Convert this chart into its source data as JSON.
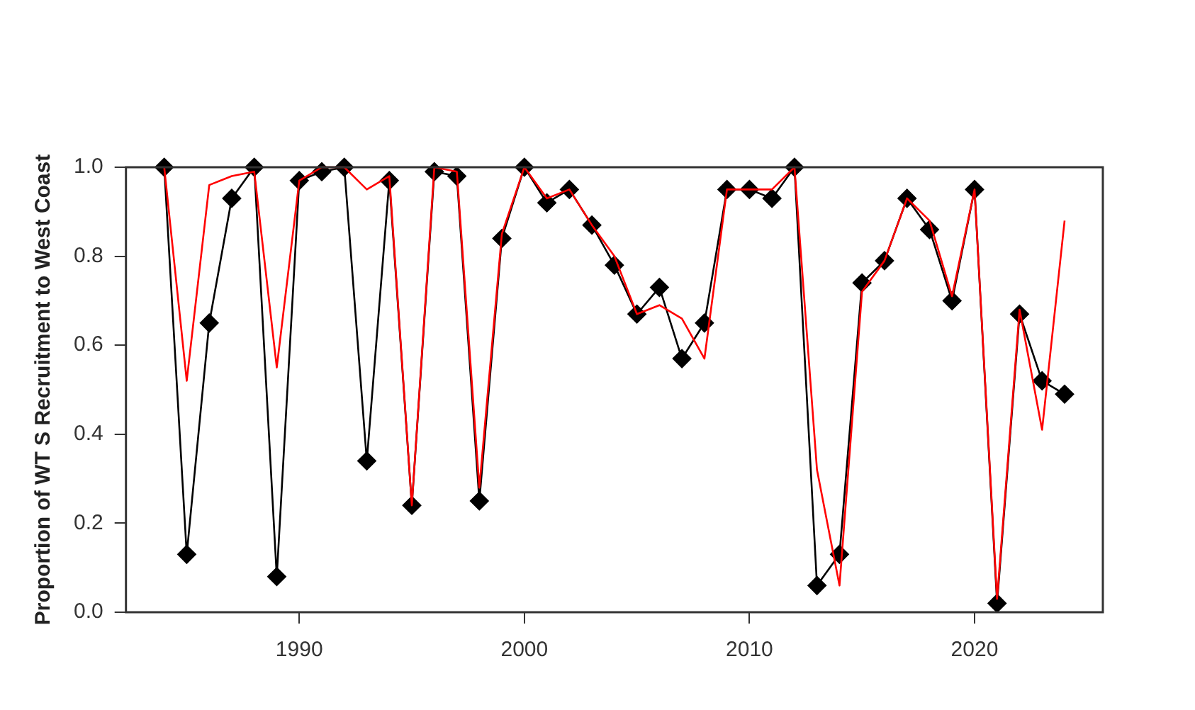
{
  "chart_data": {
    "type": "line",
    "ylabel": "Proportion of WT S Recruitment to West Coast",
    "x": [
      1984,
      1985,
      1986,
      1987,
      1988,
      1989,
      1990,
      1991,
      1992,
      1993,
      1994,
      1995,
      1996,
      1997,
      1998,
      1999,
      2000,
      2001,
      2002,
      2003,
      2004,
      2005,
      2006,
      2007,
      2008,
      2009,
      2010,
      2011,
      2012,
      2013,
      2014,
      2015,
      2016,
      2017,
      2018,
      2019,
      2020,
      2021,
      2022,
      2023,
      2024
    ],
    "series": [
      {
        "color": "#000000",
        "marker": "diamond",
        "values": [
          1.0,
          0.13,
          0.65,
          0.93,
          1.0,
          0.08,
          0.97,
          0.99,
          1.0,
          0.34,
          0.97,
          0.24,
          0.99,
          0.98,
          0.25,
          0.84,
          1.0,
          0.92,
          0.95,
          0.87,
          0.78,
          0.67,
          0.73,
          0.57,
          0.65,
          0.95,
          0.95,
          0.93,
          1.0,
          0.06,
          0.13,
          0.74,
          0.79,
          0.93,
          0.86,
          0.7,
          0.95,
          0.02,
          0.67,
          0.52,
          0.49
        ]
      },
      {
        "color": "#ff0000",
        "marker": "none",
        "values": [
          1.0,
          0.52,
          0.96,
          0.98,
          0.99,
          0.55,
          0.97,
          1.0,
          1.0,
          0.95,
          0.98,
          0.24,
          1.0,
          0.99,
          0.28,
          0.85,
          1.0,
          0.93,
          0.95,
          0.87,
          0.8,
          0.67,
          0.69,
          0.66,
          0.57,
          0.95,
          0.95,
          0.95,
          1.0,
          0.32,
          0.06,
          0.72,
          0.79,
          0.93,
          0.88,
          0.71,
          0.95,
          0.03,
          0.68,
          0.41,
          0.88
        ]
      }
    ],
    "xlim": [
      1982.3,
      2025.7
    ],
    "xticks": [
      1990,
      2000,
      2010,
      2020
    ],
    "ylim": [
      0,
      1
    ],
    "yticks": [
      {
        "value": 0,
        "label": "0.0"
      },
      {
        "value": 0.2,
        "label": "0.2"
      },
      {
        "value": 0.4,
        "label": "0.4"
      },
      {
        "value": 0.6,
        "label": "0.6"
      },
      {
        "value": 0.8,
        "label": "0.8"
      },
      {
        "value": 1,
        "label": "1.0"
      }
    ],
    "grid": false,
    "legend": false
  }
}
